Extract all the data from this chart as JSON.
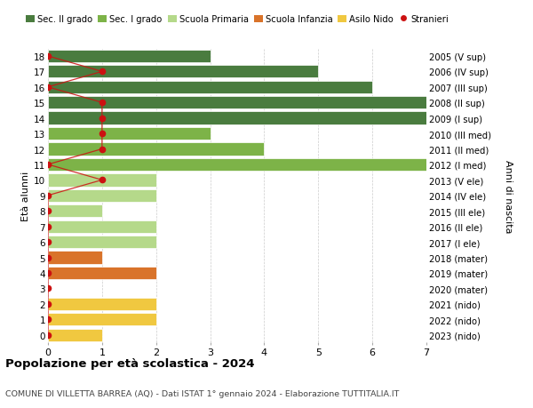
{
  "ages": [
    18,
    17,
    16,
    15,
    14,
    13,
    12,
    11,
    10,
    9,
    8,
    7,
    6,
    5,
    4,
    3,
    2,
    1,
    0
  ],
  "right_labels": [
    "2005 (V sup)",
    "2006 (IV sup)",
    "2007 (III sup)",
    "2008 (II sup)",
    "2009 (I sup)",
    "2010 (III med)",
    "2011 (II med)",
    "2012 (I med)",
    "2013 (V ele)",
    "2014 (IV ele)",
    "2015 (III ele)",
    "2016 (II ele)",
    "2017 (I ele)",
    "2018 (mater)",
    "2019 (mater)",
    "2020 (mater)",
    "2021 (nido)",
    "2022 (nido)",
    "2023 (nido)"
  ],
  "bar_values": [
    3,
    5,
    6,
    7,
    7,
    3,
    4,
    7,
    2,
    2,
    1,
    2,
    2,
    1,
    2,
    0,
    2,
    2,
    1
  ],
  "bar_colors": [
    "#4a7c3f",
    "#4a7c3f",
    "#4a7c3f",
    "#4a7c3f",
    "#4a7c3f",
    "#7db348",
    "#7db348",
    "#7db348",
    "#b5d98a",
    "#b5d98a",
    "#b5d98a",
    "#b5d98a",
    "#b5d98a",
    "#d9732a",
    "#d9732a",
    "#d9732a",
    "#f0c840",
    "#f0c840",
    "#f0c840"
  ],
  "stranieri_x": [
    0,
    1,
    0,
    1,
    1,
    1,
    1,
    0,
    1,
    0,
    0,
    0,
    0,
    0,
    0,
    0,
    0,
    0,
    0
  ],
  "legend_labels": [
    "Sec. II grado",
    "Sec. I grado",
    "Scuola Primaria",
    "Scuola Infanzia",
    "Asilo Nido",
    "Stranieri"
  ],
  "legend_colors": [
    "#4a7c3f",
    "#7db348",
    "#b5d98a",
    "#d9732a",
    "#f0c840",
    "#cc1111"
  ],
  "title": "Popolazione per età scolastica - 2024",
  "subtitle": "COMUNE DI VILLETTA BARREA (AQ) - Dati ISTAT 1° gennaio 2024 - Elaborazione TUTTITALIA.IT",
  "ylabel_left": "Età alunni",
  "ylabel_right": "Anni di nascita",
  "xlim": [
    0,
    7
  ],
  "bg_color": "#ffffff",
  "grid_color": "#cccccc",
  "plot_bg": "#f5f5f5"
}
